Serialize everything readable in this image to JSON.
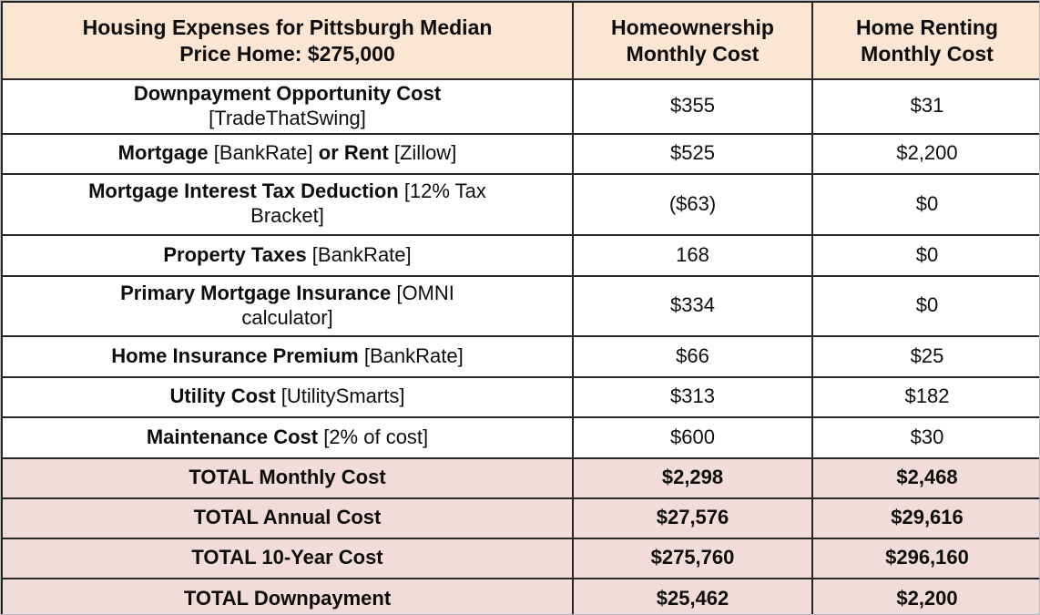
{
  "table": {
    "title_text": "Housing Expenses for Pittsburgh Median Price Home: $275,000",
    "columns": [
      {
        "id": "expense",
        "header": [
          {
            "t": "Housing Expenses for Pittsburgh Median",
            "b": true
          },
          {
            "t": "Price Home: $275,000",
            "b": true,
            "br": true
          }
        ]
      },
      {
        "id": "own",
        "header": [
          {
            "t": "Homeownership",
            "b": true
          },
          {
            "t": "Monthly Cost",
            "b": true,
            "br": true
          }
        ]
      },
      {
        "id": "rent",
        "header": [
          {
            "t": "Home Renting",
            "b": true
          },
          {
            "t": "Monthly Cost",
            "b": true,
            "br": true
          }
        ]
      }
    ],
    "rows": [
      {
        "name": "downpayment-opportunity-cost",
        "label": [
          {
            "t": "Downpayment Opportunity Cost",
            "b": true
          },
          {
            "t": "[TradeThatSwing]",
            "b": false,
            "br": true
          }
        ],
        "own": "$355",
        "rent": "$31",
        "total": false
      },
      {
        "name": "mortgage-or-rent",
        "label": [
          {
            "t": "Mortgage",
            "b": true
          },
          {
            "t": " [BankRate] ",
            "b": false
          },
          {
            "t": "or Rent",
            "b": true
          },
          {
            "t": " [Zillow]",
            "b": false
          }
        ],
        "own": "$525",
        "rent": "$2,200",
        "total": false
      },
      {
        "name": "mortgage-interest-tax-deduction",
        "label": [
          {
            "t": "Mortgage Interest Tax Deduction",
            "b": true
          },
          {
            "t": " [12% Tax",
            "b": false
          },
          {
            "t": "Bracket]",
            "b": false,
            "br": true
          }
        ],
        "own": "($63)",
        "rent": "$0",
        "total": false
      },
      {
        "name": "property-taxes",
        "label": [
          {
            "t": "Property Taxes",
            "b": true
          },
          {
            "t": " [BankRate]",
            "b": false
          }
        ],
        "own": "168",
        "rent": "$0",
        "total": false
      },
      {
        "name": "primary-mortgage-insurance",
        "label": [
          {
            "t": "Primary Mortgage Insurance",
            "b": true
          },
          {
            "t": " [OMNI",
            "b": false
          },
          {
            "t": "calculator]",
            "b": false,
            "br": true
          }
        ],
        "own": "$334",
        "rent": "$0",
        "total": false
      },
      {
        "name": "home-insurance-premium",
        "label": [
          {
            "t": "Home Insurance Premium",
            "b": true
          },
          {
            "t": " [BankRate]",
            "b": false
          }
        ],
        "own": "$66",
        "rent": "$25",
        "total": false
      },
      {
        "name": "utility-cost",
        "label": [
          {
            "t": "Utility Cost",
            "b": true
          },
          {
            "t": " [UtilitySmarts]",
            "b": false
          }
        ],
        "own": "$313",
        "rent": "$182",
        "total": false
      },
      {
        "name": "maintenance-cost",
        "label": [
          {
            "t": "Maintenance Cost",
            "b": true
          },
          {
            "t": " [2% of cost]",
            "b": false
          }
        ],
        "own": "$600",
        "rent": "$30",
        "total": false
      },
      {
        "name": "total-monthly-cost",
        "label": [
          {
            "t": "TOTAL Monthly Cost",
            "b": true
          }
        ],
        "own": "$2,298",
        "rent": "$2,468",
        "total": true
      },
      {
        "name": "total-annual-cost",
        "label": [
          {
            "t": "TOTAL Annual Cost",
            "b": true
          }
        ],
        "own": "$27,576",
        "rent": "$29,616",
        "total": true
      },
      {
        "name": "total-10-year-cost",
        "label": [
          {
            "t": "TOTAL 10-Year Cost",
            "b": true
          }
        ],
        "own": "$275,760",
        "rent": "$296,160",
        "total": true
      },
      {
        "name": "total-downpayment",
        "label": [
          {
            "t": "TOTAL Downpayment",
            "b": true
          }
        ],
        "own": "$25,462",
        "rent": "$2,200",
        "total": true
      }
    ],
    "colors": {
      "header_bg": "#fbe5d3",
      "total_bg": "#f2dcdb",
      "border": "#262626",
      "text": "#0d0d0d"
    }
  }
}
